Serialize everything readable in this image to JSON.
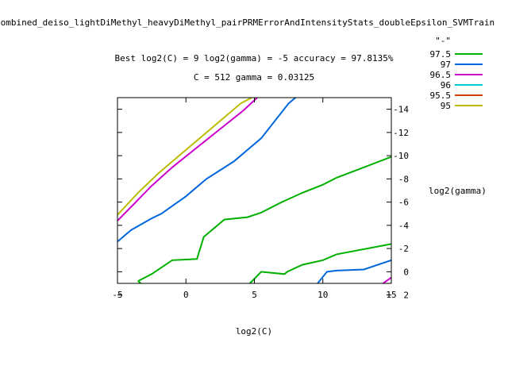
{
  "chart_data": {
    "type": "line",
    "title": "combined_deiso_lightDiMethyl_heavyDiMethyl_pairPRMErrorAndIntensityStats_doubleEpsilon_SVMTrain",
    "subtitle_1": "Best log2(C) = 9  log2(gamma) = -5  accuracy = 97.8135%",
    "subtitle_2": "C = 512  gamma = 0.03125",
    "xlabel": "log2(C)",
    "ylabel": "log2(gamma)",
    "xlim": [
      -5,
      15
    ],
    "ylim": [
      1,
      -15
    ],
    "y_axis_side": "right",
    "x_ticks": [
      -5,
      0,
      5,
      10,
      15
    ],
    "x_tick_labels": [
      "-5",
      "0",
      "5",
      "10",
      "15"
    ],
    "y_ticks": [
      -14,
      -12,
      -10,
      -8,
      -6,
      -4,
      -2,
      0,
      2
    ],
    "y_tick_labels": [
      "-14",
      "-12",
      "-10",
      "-8",
      "-6",
      "-4",
      "-2",
      "0",
      "2"
    ],
    "legend_title": "\"-\"",
    "legend_position": "top-right",
    "grid": false,
    "series": [
      {
        "name": "97.5",
        "color": "#00b000",
        "lines": [
          [
            [
              -3.5,
              0.8
            ],
            [
              -2.5,
              0.2
            ],
            [
              -1,
              -1.0
            ],
            [
              0,
              -1.05
            ],
            [
              0.8,
              -1.1
            ],
            [
              1.3,
              -3.0
            ],
            [
              2.8,
              -4.5
            ],
            [
              4.5,
              -4.7
            ],
            [
              5.5,
              -5.1
            ],
            [
              7,
              -6.0
            ],
            [
              8.5,
              -6.8
            ],
            [
              10,
              -7.5
            ],
            [
              11,
              -8.1
            ],
            [
              13,
              -9.0
            ],
            [
              15,
              -9.9
            ]
          ],
          [
            [
              -3.5,
              0.8
            ],
            [
              -3.0,
              1.3
            ],
            [
              -2.5,
              1.9
            ]
          ],
          [
            [
              3.7,
              1.9
            ],
            [
              4.5,
              1.2
            ],
            [
              5.5,
              0.0
            ],
            [
              7.2,
              0.2
            ],
            [
              7.4,
              0.0
            ],
            [
              8.5,
              -0.6
            ],
            [
              10,
              -1.0
            ],
            [
              11,
              -1.5
            ],
            [
              15,
              -2.4
            ]
          ]
        ]
      },
      {
        "name": "97",
        "color": "#0066dd",
        "lines": [
          [
            [
              -5,
              -2.6
            ],
            [
              -4,
              -3.6
            ],
            [
              -2.5,
              -4.6
            ],
            [
              -1.8,
              -5.0
            ],
            [
              0,
              -6.5
            ],
            [
              1.5,
              -8.0
            ],
            [
              3.5,
              -9.5
            ],
            [
              5.5,
              -11.5
            ],
            [
              7.5,
              -14.5
            ],
            [
              8,
              -15
            ]
          ],
          [
            [
              -5,
              1.9
            ],
            [
              -4.8,
              2.0
            ]
          ],
          [
            [
              6.9,
              1.6
            ],
            [
              8.5,
              1.9
            ]
          ],
          [
            [
              9,
              1.9
            ],
            [
              10.3,
              0.0
            ],
            [
              11,
              -0.1
            ],
            [
              13,
              -0.2
            ],
            [
              15,
              -1.0
            ]
          ]
        ]
      },
      {
        "name": "96.5",
        "color": "#cc00cc",
        "lines": [
          [
            [
              -5,
              -4.4
            ],
            [
              -4,
              -5.6
            ],
            [
              -2.5,
              -7.4
            ],
            [
              -1,
              -9.0
            ],
            [
              0.8,
              -10.7
            ],
            [
              2.5,
              -12.3
            ],
            [
              4.2,
              -13.9
            ],
            [
              5.2,
              -15
            ]
          ],
          [
            [
              14.4,
              1.0
            ],
            [
              15,
              0.5
            ]
          ],
          [
            [
              14.4,
              1.0
            ],
            [
              15,
              2.4
            ]
          ]
        ]
      },
      {
        "name": "96",
        "color": "#00cccc",
        "lines": []
      },
      {
        "name": "95.5",
        "color": "#cc4400",
        "lines": []
      },
      {
        "name": "95",
        "color": "#bbbb00",
        "lines": [
          [
            [
              -5,
              -4.9
            ],
            [
              -3.5,
              -6.8
            ],
            [
              -2,
              -8.5
            ],
            [
              0,
              -10.5
            ],
            [
              2,
              -12.5
            ],
            [
              4,
              -14.5
            ],
            [
              4.8,
              -15
            ]
          ]
        ]
      }
    ]
  }
}
